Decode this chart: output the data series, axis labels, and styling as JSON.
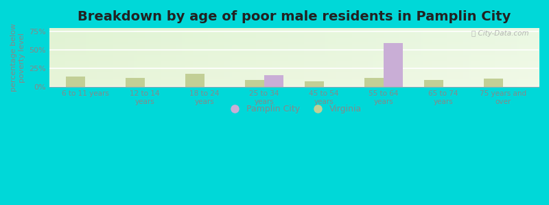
{
  "title": "Breakdown by age of poor male residents in Pamplin City",
  "ylabel": "percentage below\npoverty level",
  "categories": [
    "6 to 11 years",
    "12 to 14\nyears",
    "18 to 24\nyears",
    "25 to 34\nyears",
    "45 to 54\nyears",
    "55 to 64\nyears",
    "65 to 74\nyears",
    "75 years and\nover"
  ],
  "pamplin_values": [
    0,
    0,
    0,
    16,
    0,
    60,
    0,
    0
  ],
  "virginia_values": [
    14,
    12,
    18,
    10,
    8,
    12,
    10,
    11
  ],
  "pamplin_color": "#c9aed6",
  "virginia_color": "#c2cf96",
  "bar_width": 0.32,
  "ylim": [
    0,
    80
  ],
  "yticks": [
    0,
    25,
    50,
    75
  ],
  "ytick_labels": [
    "0%",
    "25%",
    "50%",
    "75%"
  ],
  "legend_pamplin": "Pamplin City",
  "legend_virginia": "Virginia",
  "title_fontsize": 14,
  "axis_fontsize": 8,
  "watermark": "ⓘ City-Data.com",
  "fig_bg": "#00d8d8",
  "plot_bg_top": "#e8f5e0",
  "plot_bg_bottom": "#f5f8e8"
}
